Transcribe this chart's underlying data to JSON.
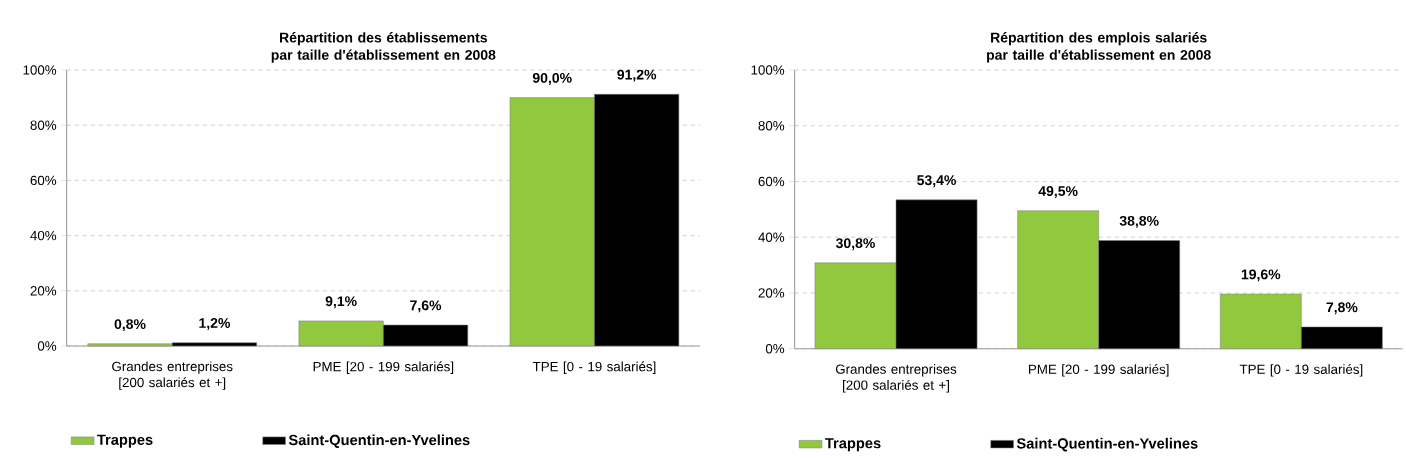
{
  "chart_data": [
    {
      "type": "bar",
      "title": "Répartition des établissements par taille d'établissement en 2008",
      "categories": [
        "Grandes entreprises [200 salariés et +]",
        "PME [20 - 199 salariés]",
        "TPE [0 - 19 salariés]"
      ],
      "series": [
        {
          "name": "Trappes",
          "color": "#92c83e",
          "values": [
            0.8,
            9.1,
            90.0
          ],
          "value_labels": [
            "0,8%",
            "9,1%",
            "90,0%"
          ]
        },
        {
          "name": "Saint-Quentin-en-Yvelines",
          "color": "#000000",
          "values": [
            1.2,
            7.6,
            91.2
          ],
          "value_labels": [
            "1,2%",
            "7,6%",
            "91,2%"
          ]
        }
      ],
      "ylim": [
        0,
        100
      ],
      "yticks": [
        {
          "value": 0,
          "label": "0%"
        },
        {
          "value": 20,
          "label": "20%"
        },
        {
          "value": 40,
          "label": "40%"
        },
        {
          "value": 60,
          "label": "60%"
        },
        {
          "value": 80,
          "label": "80%"
        },
        {
          "value": 100,
          "label": "100%"
        }
      ],
      "grid": "y",
      "legend": "bottom"
    },
    {
      "type": "bar",
      "title": "Répartition des emplois salariés par taille d'établissement en 2008",
      "categories": [
        "Grandes entreprises [200 salariés et +]",
        "PME [20 - 199 salariés]",
        "TPE [0 - 19 salariés]"
      ],
      "series": [
        {
          "name": "Trappes",
          "color": "#92c83e",
          "values": [
            30.8,
            49.5,
            19.6
          ],
          "value_labels": [
            "30,8%",
            "49,5%",
            "19,6%"
          ]
        },
        {
          "name": "Saint-Quentin-en-Yvelines",
          "color": "#000000",
          "values": [
            53.4,
            38.8,
            7.8
          ],
          "value_labels": [
            "53,4%",
            "38,8%",
            "7,8%"
          ]
        }
      ],
      "ylim": [
        0,
        100
      ],
      "yticks": [
        {
          "value": 0,
          "label": "0%"
        },
        {
          "value": 20,
          "label": "20%"
        },
        {
          "value": 40,
          "label": "40%"
        },
        {
          "value": 60,
          "label": "60%"
        },
        {
          "value": 80,
          "label": "80%"
        },
        {
          "value": 100,
          "label": "100%"
        }
      ],
      "grid": "y",
      "legend": "bottom"
    }
  ]
}
